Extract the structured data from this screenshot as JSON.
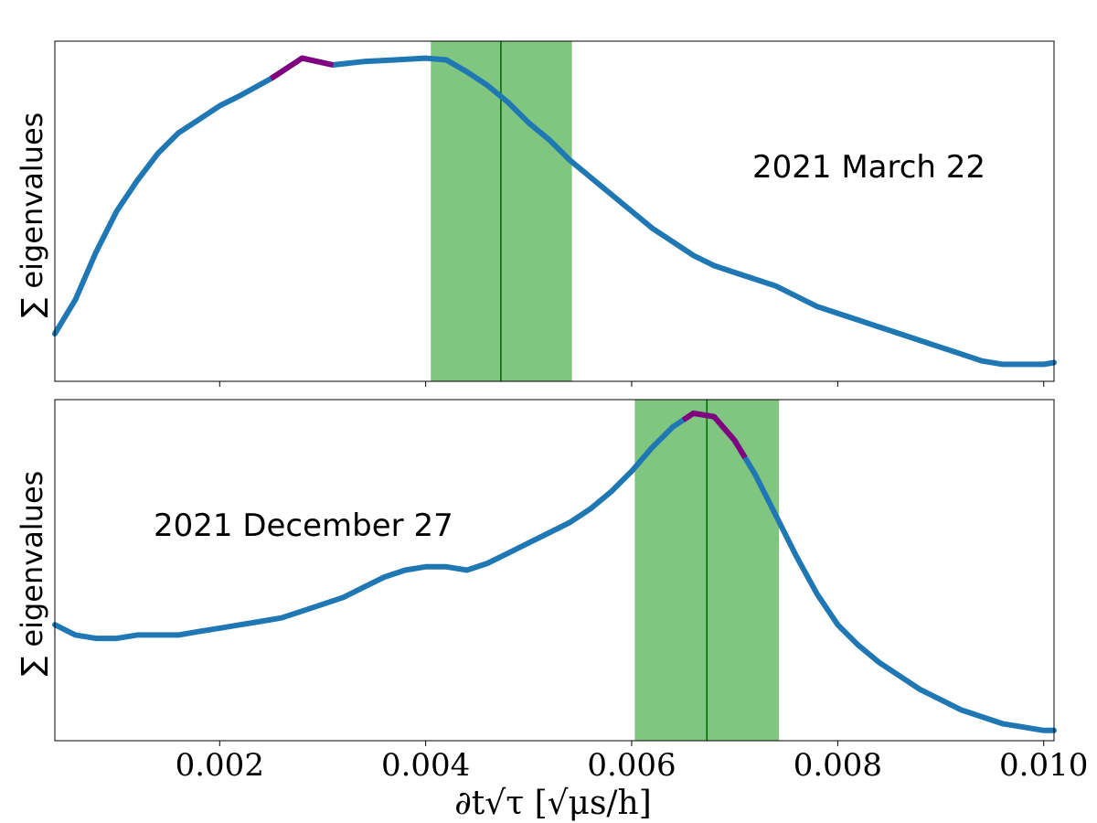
{
  "chart_data": [
    {
      "type": "line",
      "panel": "top",
      "ylabel": "∑ eigenvalues",
      "annotation": "2021 March 22",
      "xlim": [
        0.0004,
        0.0101
      ],
      "ylim": [
        0,
        1
      ],
      "shaded_band": [
        0.00405,
        0.00542
      ],
      "vline": 0.00473,
      "peak_highlight": {
        "x": [
          0.0025,
          0.0031
        ],
        "color": "#800080"
      },
      "series": [
        {
          "color": "#1f77b4",
          "x": [
            0.0004,
            0.0006,
            0.0008,
            0.001,
            0.0012,
            0.0014,
            0.0016,
            0.0018,
            0.002,
            0.0022,
            0.0025,
            0.0028,
            0.0031,
            0.0034,
            0.0037,
            0.004,
            0.0042,
            0.0044,
            0.0046,
            0.0048,
            0.005,
            0.0052,
            0.0054,
            0.0056,
            0.0058,
            0.006,
            0.0062,
            0.0064,
            0.0066,
            0.0068,
            0.007,
            0.0072,
            0.0074,
            0.0076,
            0.0078,
            0.008,
            0.0082,
            0.0084,
            0.0086,
            0.0088,
            0.009,
            0.0092,
            0.0094,
            0.0096,
            0.0098,
            0.01,
            0.0101
          ],
          "y": [
            0.14,
            0.24,
            0.38,
            0.5,
            0.59,
            0.67,
            0.73,
            0.77,
            0.81,
            0.84,
            0.89,
            0.95,
            0.93,
            0.94,
            0.945,
            0.95,
            0.945,
            0.91,
            0.87,
            0.82,
            0.76,
            0.71,
            0.65,
            0.6,
            0.55,
            0.5,
            0.45,
            0.41,
            0.37,
            0.34,
            0.32,
            0.3,
            0.28,
            0.25,
            0.22,
            0.2,
            0.18,
            0.16,
            0.14,
            0.12,
            0.1,
            0.08,
            0.06,
            0.05,
            0.05,
            0.05,
            0.055
          ]
        }
      ]
    },
    {
      "type": "line",
      "panel": "bottom",
      "ylabel": "∑ eigenvalues",
      "xlabel": "∂t√τ [√μs/h]",
      "annotation": "2021 December 27",
      "xlim": [
        0.0004,
        0.0101
      ],
      "ylim": [
        0,
        1
      ],
      "shaded_band": [
        0.00603,
        0.00743
      ],
      "vline": 0.00673,
      "peak_highlight": {
        "x": [
          0.0065,
          0.0071
        ],
        "color": "#800080"
      },
      "xticks": [
        0.002,
        0.004,
        0.006,
        0.008,
        0.01
      ],
      "xtick_labels": [
        "0.002",
        "0.004",
        "0.006",
        "0.008",
        "0.010"
      ],
      "series": [
        {
          "color": "#1f77b4",
          "x": [
            0.0004,
            0.0006,
            0.0008,
            0.001,
            0.0012,
            0.0014,
            0.0016,
            0.0018,
            0.002,
            0.0022,
            0.0024,
            0.0026,
            0.0028,
            0.003,
            0.0032,
            0.0034,
            0.0036,
            0.0038,
            0.004,
            0.0042,
            0.0044,
            0.0046,
            0.0048,
            0.005,
            0.0052,
            0.0054,
            0.0056,
            0.0058,
            0.006,
            0.0062,
            0.0064,
            0.0066,
            0.0068,
            0.007,
            0.0072,
            0.0074,
            0.0076,
            0.0078,
            0.008,
            0.0082,
            0.0084,
            0.0086,
            0.0088,
            0.009,
            0.0092,
            0.0094,
            0.0096,
            0.0098,
            0.01,
            0.0101
          ],
          "y": [
            0.34,
            0.31,
            0.3,
            0.3,
            0.31,
            0.31,
            0.31,
            0.32,
            0.33,
            0.34,
            0.35,
            0.36,
            0.38,
            0.4,
            0.42,
            0.45,
            0.48,
            0.5,
            0.51,
            0.51,
            0.5,
            0.52,
            0.55,
            0.58,
            0.61,
            0.64,
            0.68,
            0.73,
            0.79,
            0.86,
            0.92,
            0.96,
            0.95,
            0.88,
            0.78,
            0.66,
            0.54,
            0.43,
            0.34,
            0.28,
            0.23,
            0.19,
            0.15,
            0.12,
            0.09,
            0.07,
            0.05,
            0.04,
            0.03,
            0.03
          ]
        }
      ]
    }
  ]
}
